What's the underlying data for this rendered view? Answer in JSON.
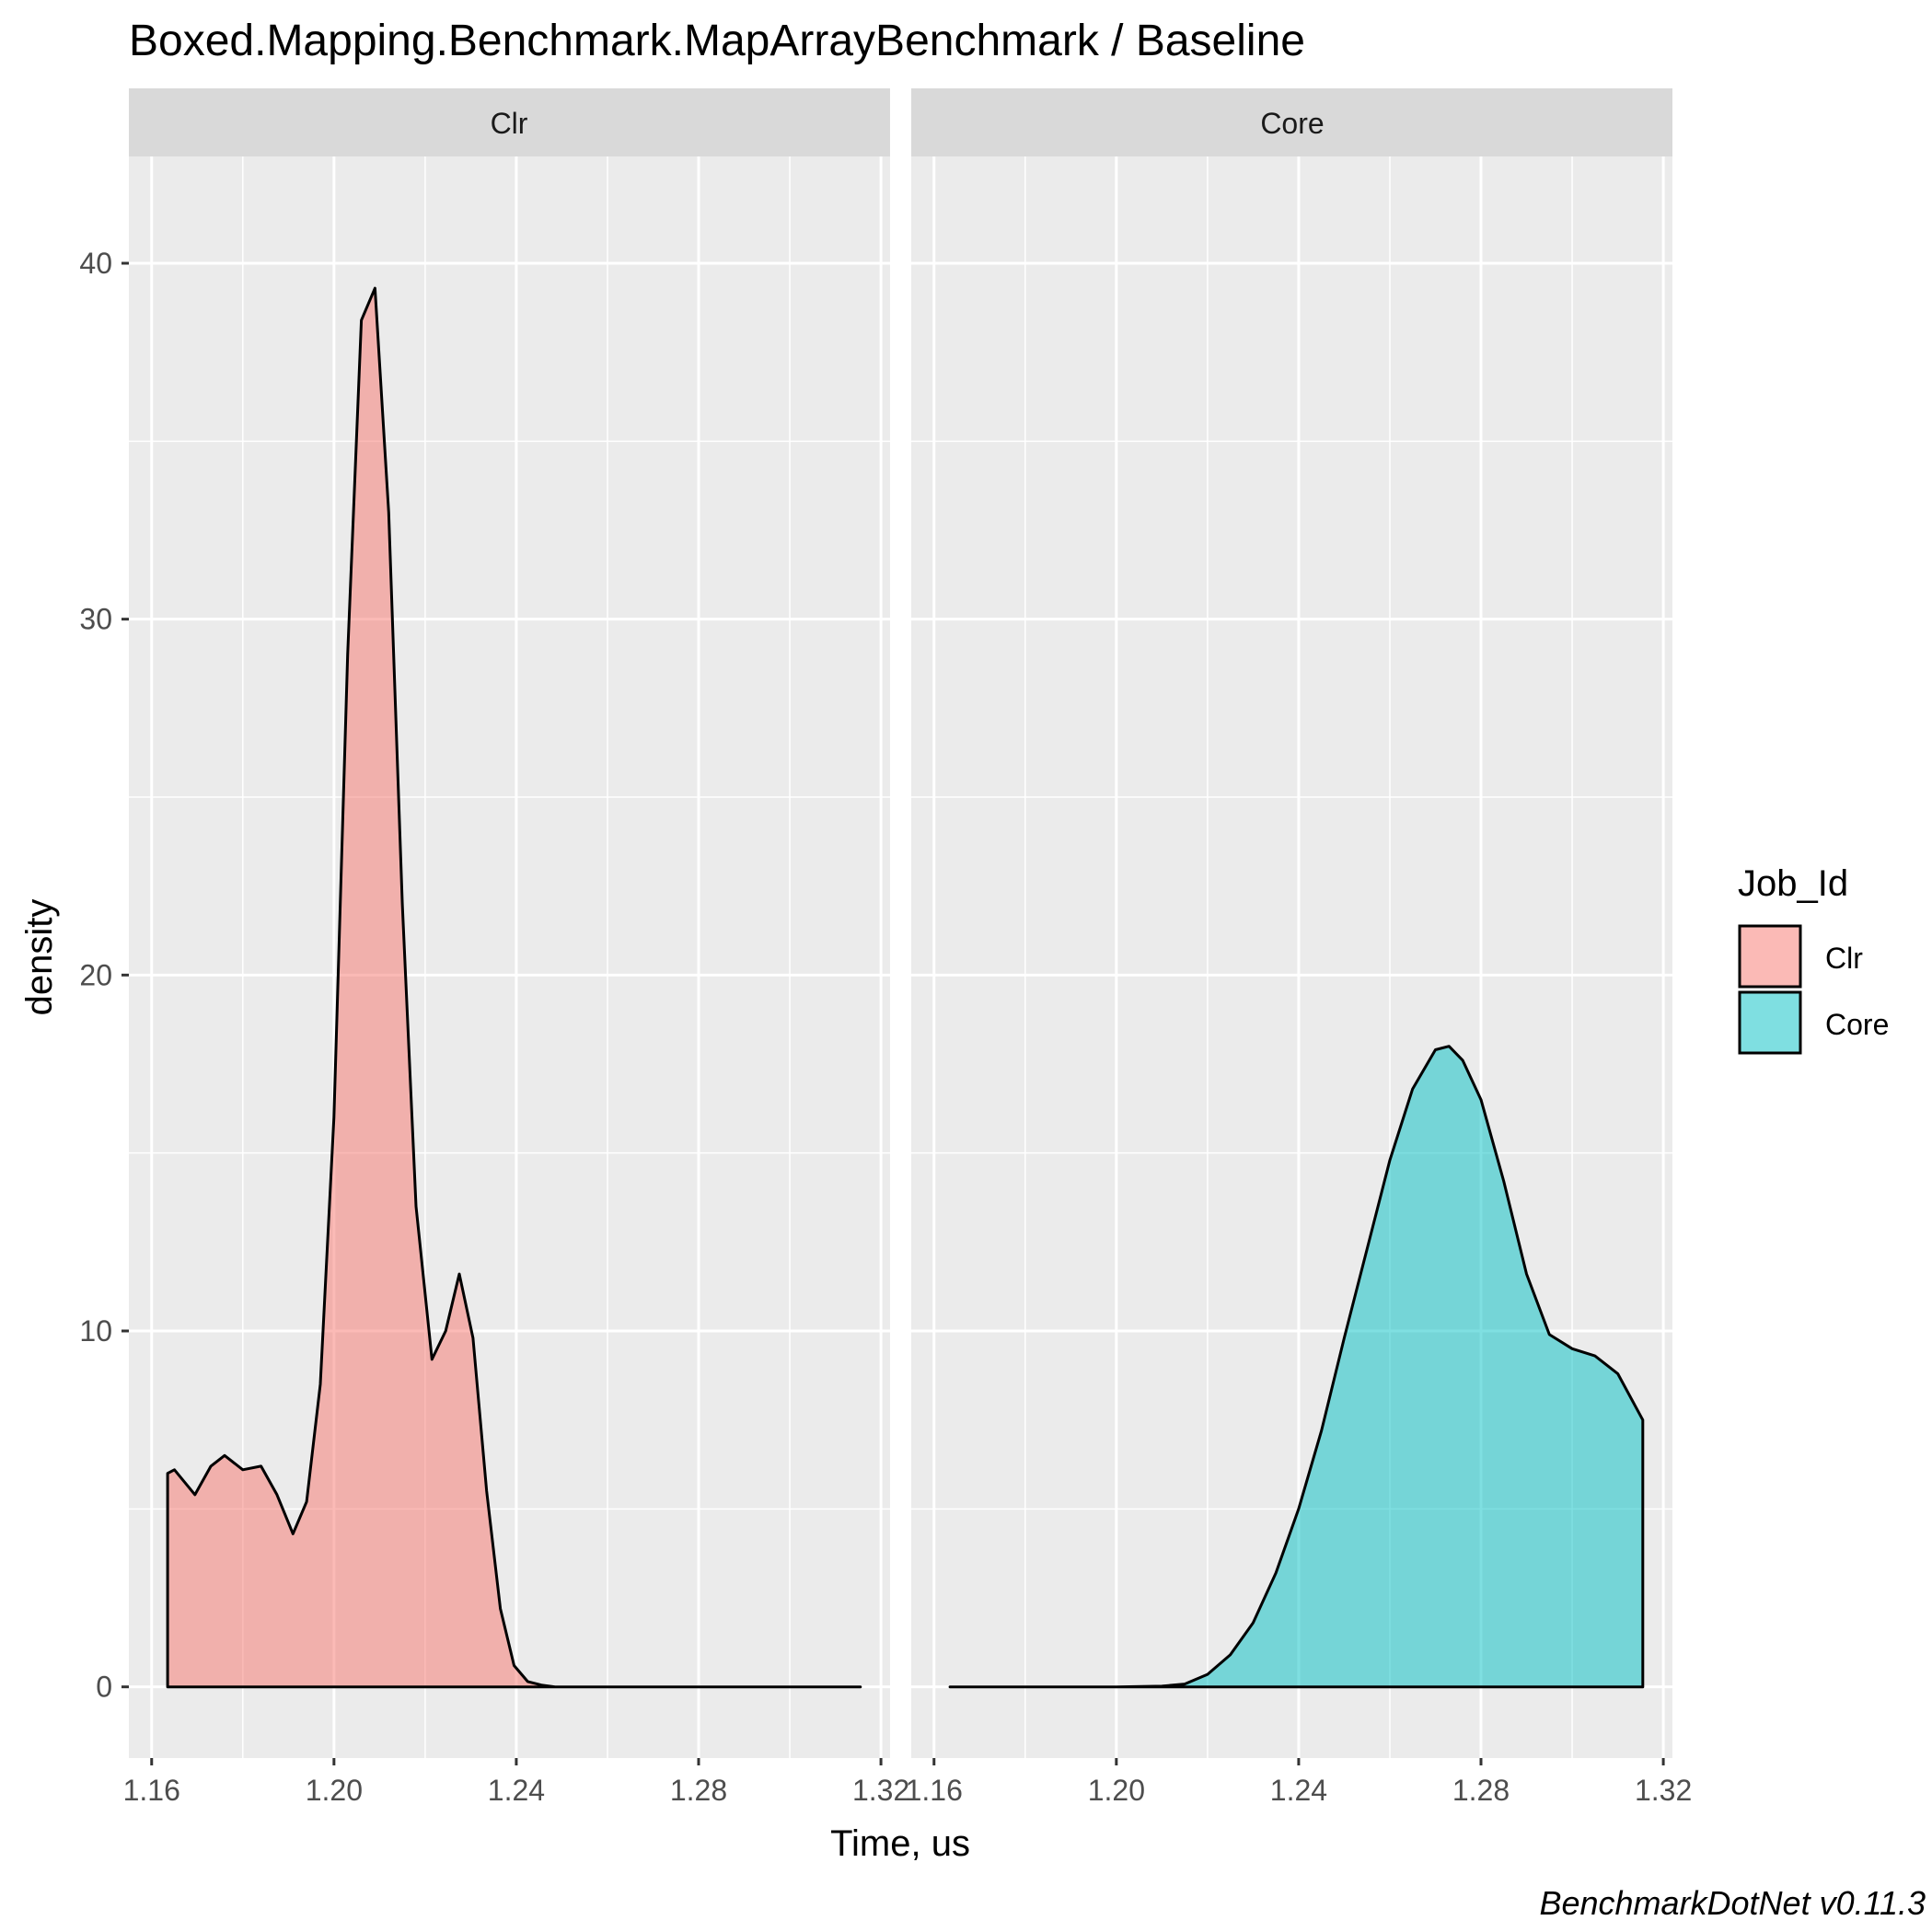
{
  "chart_data": {
    "type": "area",
    "title": "Boxed.Mapping.Benchmark.MapArrayBenchmark / Baseline",
    "xlabel": "Time, us",
    "ylabel": "density",
    "xlim": [
      1.155,
      1.322
    ],
    "ylim": [
      -2,
      43
    ],
    "x_ticks": [
      1.16,
      1.2,
      1.24,
      1.28,
      1.32
    ],
    "x_tick_labels": [
      "1.16",
      "1.20",
      "1.24",
      "1.28",
      "1.32"
    ],
    "y_ticks": [
      0,
      10,
      20,
      30,
      40
    ],
    "y_tick_labels": [
      "0",
      "10",
      "20",
      "30",
      "40"
    ],
    "grid": true,
    "legend": {
      "title": "Job_Id",
      "position": "right",
      "entries": [
        {
          "label": "Clr",
          "color": "#F8766D"
        },
        {
          "label": "Core",
          "color": "#00BFC4"
        }
      ]
    },
    "series": [
      {
        "name": "Clr",
        "panel": "Clr",
        "color": "#F8766D",
        "x": [
          1.1635,
          1.165,
          1.1695,
          1.173,
          1.176,
          1.18,
          1.184,
          1.1875,
          1.191,
          1.194,
          1.197,
          1.2,
          1.203,
          1.206,
          1.209,
          1.212,
          1.215,
          1.218,
          1.2215,
          1.2245,
          1.2275,
          1.2305,
          1.2335,
          1.2365,
          1.2395,
          1.2425,
          1.2455,
          1.2485,
          1.26,
          1.28,
          1.3,
          1.3155
        ],
        "y": [
          6.0,
          6.1,
          5.4,
          6.2,
          6.5,
          6.1,
          6.2,
          5.4,
          4.3,
          5.2,
          8.5,
          16,
          29,
          38.4,
          39.3,
          33,
          22,
          13.5,
          9.2,
          10,
          11.6,
          9.8,
          5.5,
          2.2,
          0.6,
          0.15,
          0.05,
          0.0,
          0.0,
          0.0,
          0.0,
          0.0
        ]
      },
      {
        "name": "Core",
        "panel": "Core",
        "color": "#00BFC4",
        "x": [
          1.1635,
          1.18,
          1.2,
          1.21,
          1.215,
          1.22,
          1.225,
          1.23,
          1.235,
          1.24,
          1.245,
          1.25,
          1.255,
          1.26,
          1.265,
          1.27,
          1.273,
          1.276,
          1.28,
          1.285,
          1.29,
          1.295,
          1.3,
          1.305,
          1.31,
          1.3155
        ],
        "y": [
          0.0,
          0.0,
          0.0,
          0.02,
          0.08,
          0.35,
          0.9,
          1.8,
          3.2,
          5.0,
          7.2,
          9.8,
          12.3,
          14.8,
          16.8,
          17.9,
          18.0,
          17.6,
          16.5,
          14.2,
          11.6,
          9.9,
          9.5,
          9.3,
          8.8,
          7.5
        ]
      }
    ],
    "facets": [
      "Clr",
      "Core"
    ],
    "caption": "BenchmarkDotNet v0.11.3"
  },
  "colors": {
    "panel_bg": "#EBEBEB",
    "strip_bg": "#D9D9D9",
    "grid": "#FFFFFF",
    "clr": "#F8766D",
    "core": "#00BFC4"
  }
}
